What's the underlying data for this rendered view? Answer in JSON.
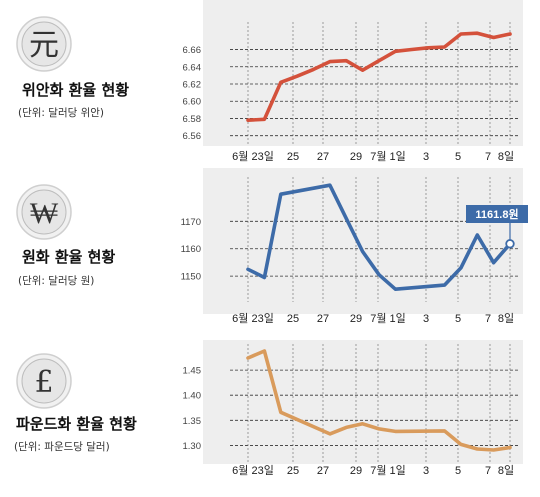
{
  "chart_data": [
    {
      "type": "line",
      "symbol": "元",
      "title": "위안화 환율 현황",
      "unit": "(단위: 달러당 위안)",
      "color": "#d4513b",
      "x_labels": [
        "6월 23일",
        "25",
        "27",
        "29",
        "7월 1일",
        "3",
        "5",
        "7",
        "8일"
      ],
      "y_ticks": [
        "6.56",
        "6.58",
        "6.60",
        "6.62",
        "6.64",
        "6.66"
      ],
      "ylim": [
        6.555,
        6.685
      ],
      "grid": true,
      "series": [
        {
          "values": [
            {
              "x": "6/22",
              "y": 6.578
            },
            {
              "x": "6/23",
              "y": 6.579
            },
            {
              "x": "6/24",
              "y": 6.622
            },
            {
              "x": "6/25",
              "y": 6.629
            },
            {
              "x": "6/26",
              "y": 6.637
            },
            {
              "x": "6/27",
              "y": 6.646
            },
            {
              "x": "6/28",
              "y": 6.647
            },
            {
              "x": "6/29",
              "y": 6.636
            },
            {
              "x": "6/30",
              "y": 6.647
            },
            {
              "x": "7/1",
              "y": 6.658
            },
            {
              "x": "7/2",
              "y": 6.66
            },
            {
              "x": "7/3",
              "y": 6.662
            },
            {
              "x": "7/4",
              "y": 6.663
            },
            {
              "x": "7/5",
              "y": 6.678
            },
            {
              "x": "7/6",
              "y": 6.679
            },
            {
              "x": "7/7",
              "y": 6.674
            },
            {
              "x": "7/8",
              "y": 6.678
            }
          ]
        }
      ]
    },
    {
      "type": "line",
      "symbol": "₩",
      "title": "원화 환율 현황",
      "unit": "(단위: 달러당 원)",
      "color": "#3d6ba8",
      "x_labels": [
        "6월 23일",
        "25",
        "27",
        "29",
        "7월 1일",
        "3",
        "5",
        "7",
        "8일"
      ],
      "y_ticks": [
        "1150",
        "1160",
        "1170"
      ],
      "ylim": [
        1142,
        1184
      ],
      "grid": true,
      "callout": "1161.8원",
      "series": [
        {
          "values": [
            {
              "x": "6/22",
              "y": 1152.5
            },
            {
              "x": "6/23",
              "y": 1149.5
            },
            {
              "x": "6/24",
              "y": 1179.9
            },
            {
              "x": "6/27",
              "y": 1183.2
            },
            {
              "x": "6/28",
              "y": 1171.0
            },
            {
              "x": "6/29",
              "y": 1159.0
            },
            {
              "x": "6/30",
              "y": 1150.5
            },
            {
              "x": "7/1",
              "y": 1145.2
            },
            {
              "x": "7/4",
              "y": 1146.7
            },
            {
              "x": "7/5",
              "y": 1153.0
            },
            {
              "x": "7/6",
              "y": 1165.0
            },
            {
              "x": "7/7",
              "y": 1154.9
            },
            {
              "x": "7/8",
              "y": 1161.8
            }
          ]
        }
      ]
    },
    {
      "type": "line",
      "symbol": "£",
      "title": "파운드화 환율 현황",
      "unit": "(단위: 파운드당 달러)",
      "color": "#d99b5c",
      "x_labels": [
        "6월 23일",
        "25",
        "27",
        "29",
        "7월 1일",
        "3",
        "5",
        "7",
        "8일"
      ],
      "y_ticks": [
        "1.30",
        "1.35",
        "1.40",
        "1.45"
      ],
      "ylim": [
        1.275,
        1.49
      ],
      "grid": true,
      "series": [
        {
          "values": [
            {
              "x": "6/22",
              "y": 1.474
            },
            {
              "x": "6/23",
              "y": 1.488
            },
            {
              "x": "6/24",
              "y": 1.366
            },
            {
              "x": "6/27",
              "y": 1.323
            },
            {
              "x": "6/28",
              "y": 1.336
            },
            {
              "x": "6/29",
              "y": 1.343
            },
            {
              "x": "6/30",
              "y": 1.333
            },
            {
              "x": "7/1",
              "y": 1.328
            },
            {
              "x": "7/4",
              "y": 1.329
            },
            {
              "x": "7/5",
              "y": 1.302
            },
            {
              "x": "7/6",
              "y": 1.293
            },
            {
              "x": "7/7",
              "y": 1.291
            },
            {
              "x": "7/8",
              "y": 1.296
            }
          ]
        }
      ]
    }
  ]
}
